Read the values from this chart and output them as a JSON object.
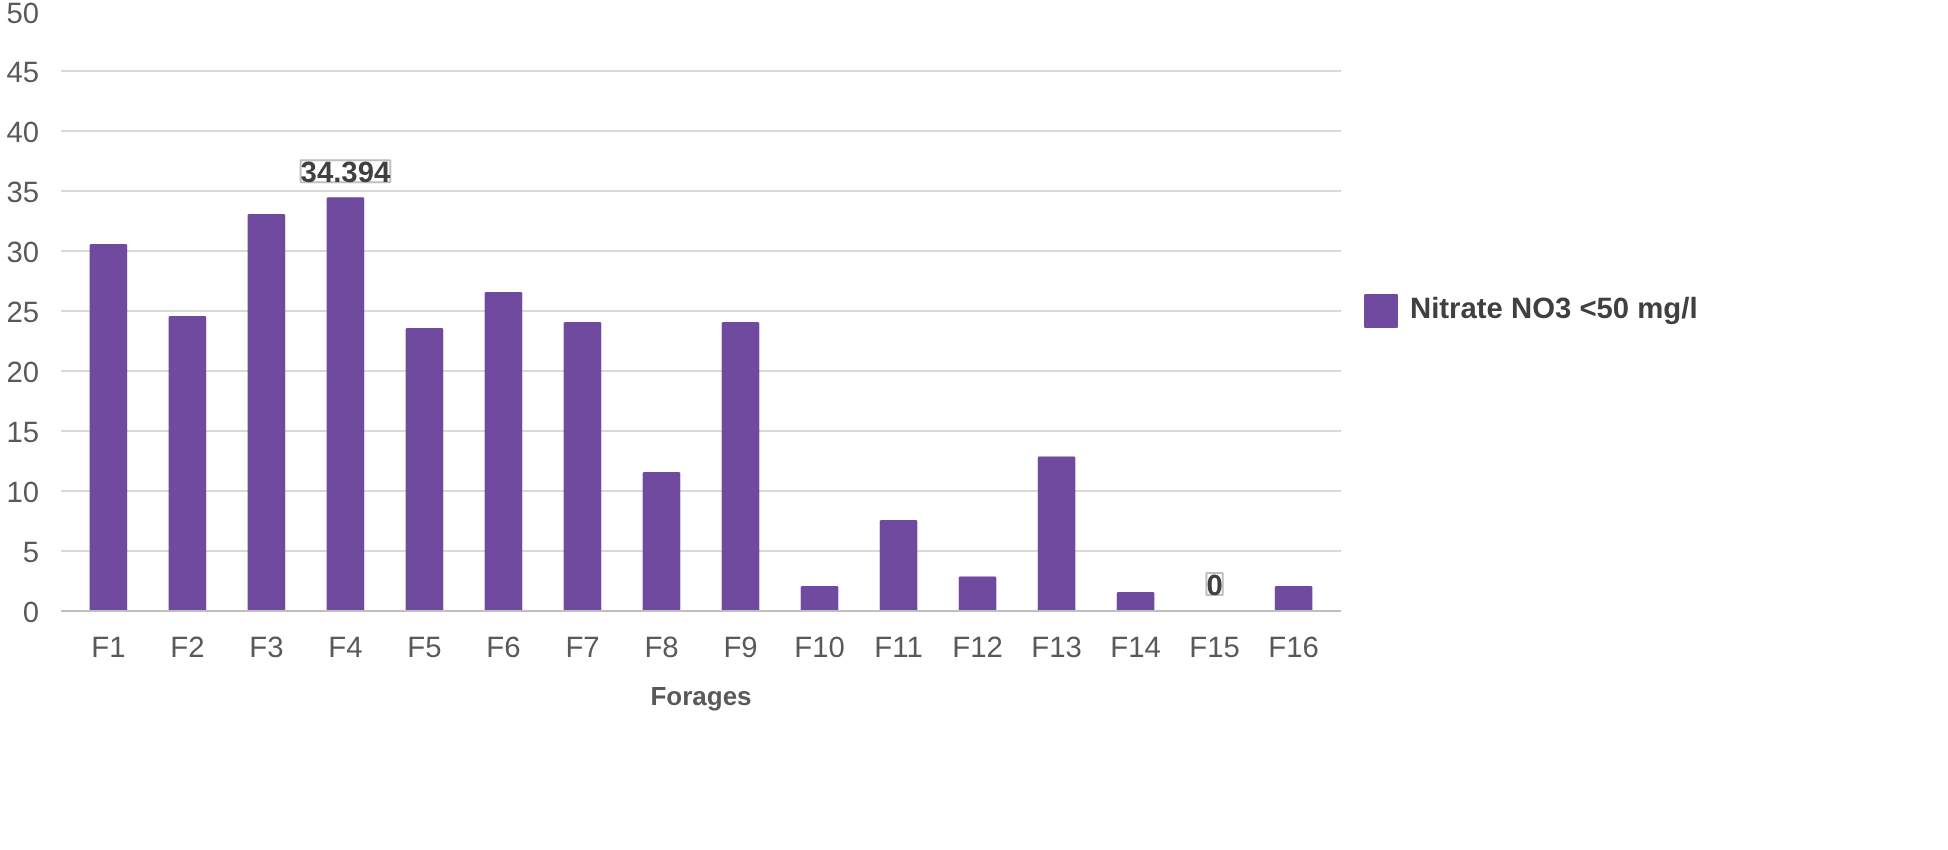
{
  "chart_data": {
    "type": "bar",
    "xlabel": "Forages",
    "categories": [
      "F1",
      "F2",
      "F3",
      "F4",
      "F5",
      "F6",
      "F7",
      "F8",
      "F9",
      "F10",
      "F11",
      "F12",
      "F13",
      "F14",
      "F15",
      "F16"
    ],
    "series": [
      {
        "name": "Nitrate NO3 <50 mg/l",
        "color": "#6f4a9e",
        "values": [
          30.5,
          24.5,
          33,
          34.394,
          23.5,
          26.5,
          24,
          11.5,
          24,
          2,
          7.5,
          2.8,
          12.8,
          1.5,
          0,
          2
        ],
        "value_labels": [
          null,
          null,
          null,
          "34.394",
          null,
          null,
          null,
          null,
          null,
          null,
          null,
          null,
          null,
          null,
          "0",
          null
        ]
      }
    ],
    "ylim": [
      0,
      50
    ],
    "yticks": [
      0,
      5,
      10,
      15,
      20,
      25,
      30,
      35,
      40,
      45,
      50
    ],
    "grid": "y",
    "legend": "right"
  }
}
